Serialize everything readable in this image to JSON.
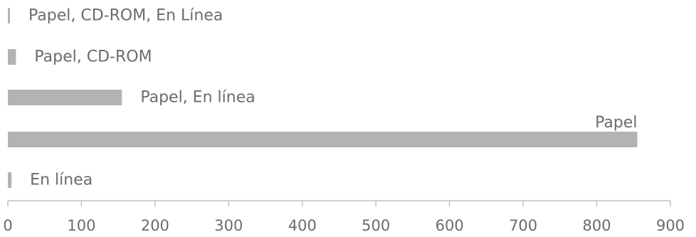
{
  "chart_data": {
    "type": "bar",
    "orientation": "horizontal",
    "categories": [
      "Papel, CD-ROM, En Línea",
      "Papel, CD-ROM",
      "Papel, En línea",
      "Papel",
      "En línea"
    ],
    "values": [
      2,
      11,
      155,
      855,
      5
    ],
    "xlim": [
      0,
      900
    ],
    "xticks": [
      0,
      100,
      200,
      300,
      400,
      500,
      600,
      700,
      800,
      900
    ],
    "grid": false,
    "bar_color": "#b3b3b3",
    "axis_color": "#c0c0c0",
    "text_color": "#6b6b6b"
  }
}
